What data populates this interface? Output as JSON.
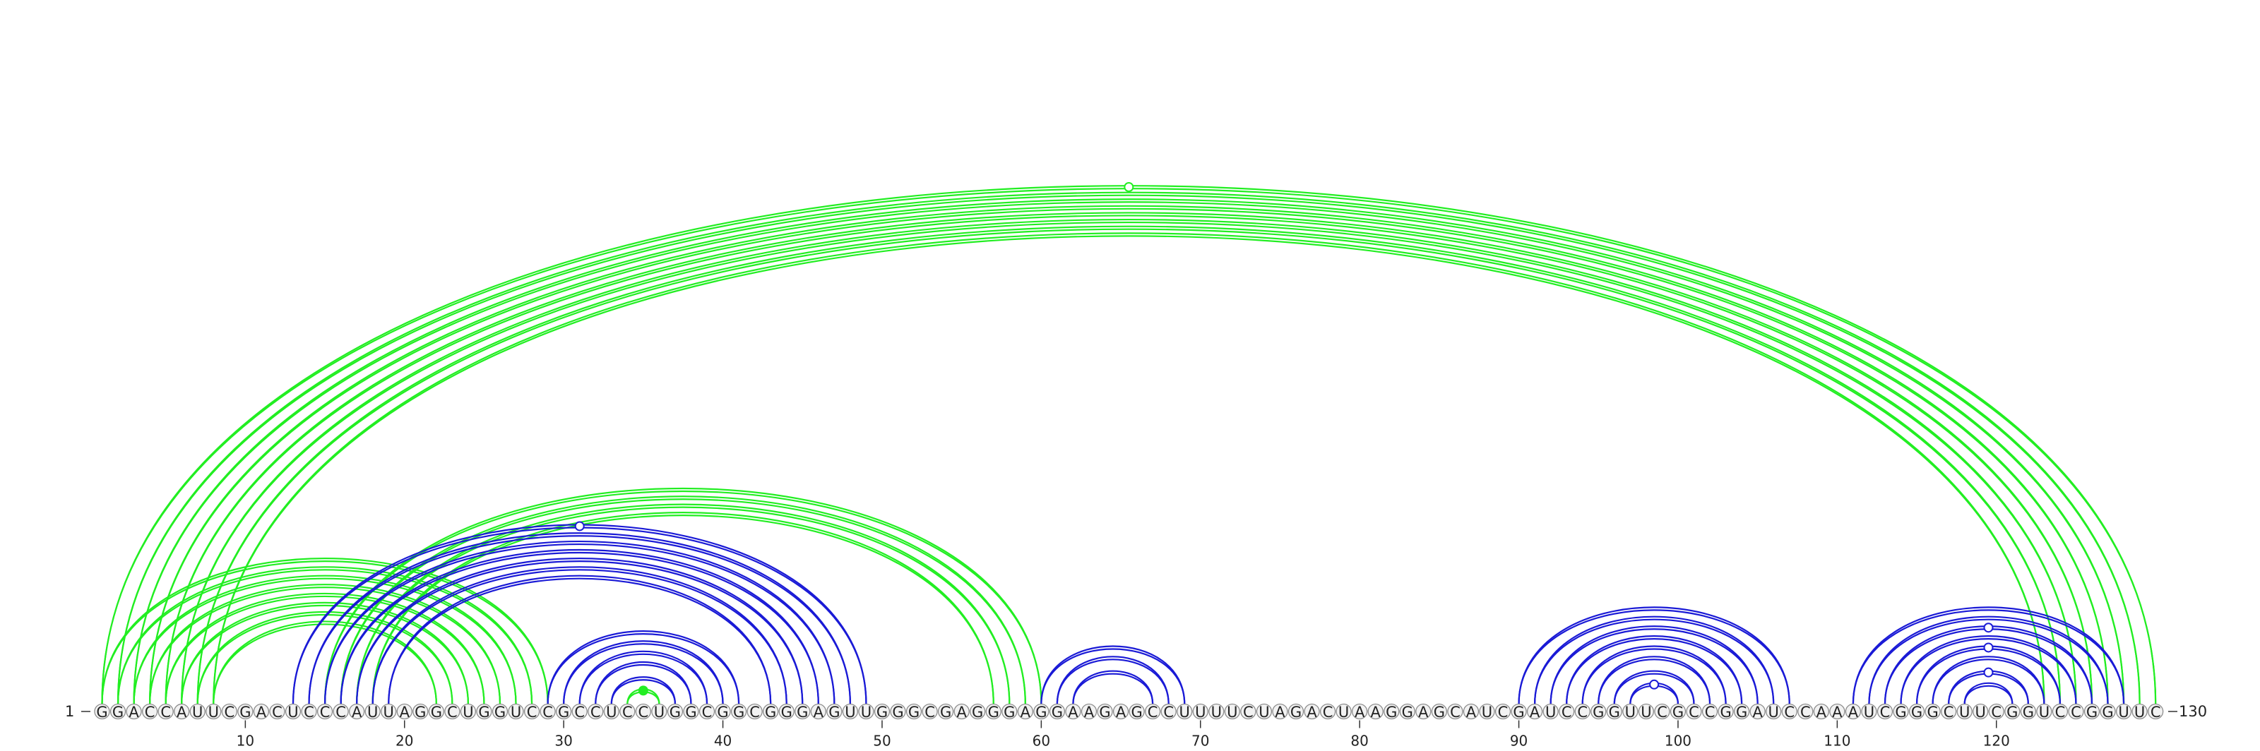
{
  "sequence": "GGACCAUUCGACUCCCAUUAGGCUGGUCCGCCUCCUGGCGGCGGGAGUUGGGCGAGGGAGGAAGAGCCUUUUCUAGACUAAGGAGCAUCGAUCCGGUUCGCCGGAUCCAAAUCGGGCUUCGGUCCGGUUC",
  "start_label": "1",
  "end_label": "130",
  "ticks": [
    10,
    20,
    30,
    40,
    50,
    60,
    70,
    80,
    90,
    100,
    110,
    120
  ],
  "colors": {
    "green": "#22ee22",
    "blue": "#1a1ad6",
    "green_marker": "#22dd22"
  },
  "arc_groups": [
    {
      "color": "green",
      "pairs": [
        [
          1,
          130
        ],
        [
          2,
          129
        ],
        [
          3,
          128
        ],
        [
          4,
          127
        ],
        [
          5,
          126
        ],
        [
          6,
          125
        ],
        [
          7,
          124
        ],
        [
          8,
          123
        ]
      ]
    },
    {
      "color": "green",
      "pairs": [
        [
          1,
          29
        ],
        [
          2,
          28
        ],
        [
          3,
          27
        ],
        [
          4,
          26
        ],
        [
          5,
          25
        ],
        [
          6,
          24
        ],
        [
          7,
          23
        ],
        [
          8,
          22
        ]
      ]
    },
    {
      "color": "green",
      "pairs": [
        [
          15,
          60
        ],
        [
          16,
          59
        ],
        [
          17,
          58
        ],
        [
          18,
          57
        ]
      ]
    },
    {
      "color": "blue",
      "pairs": [
        [
          13,
          49
        ],
        [
          14,
          48
        ],
        [
          15,
          47
        ],
        [
          16,
          46
        ],
        [
          17,
          45
        ],
        [
          18,
          44
        ],
        [
          19,
          43
        ]
      ]
    },
    {
      "color": "blue",
      "pairs": [
        [
          29,
          41
        ],
        [
          30,
          40
        ],
        [
          31,
          39
        ],
        [
          32,
          38
        ],
        [
          33,
          37
        ]
      ]
    },
    {
      "color": "blue",
      "pairs": [
        [
          60,
          69
        ],
        [
          61,
          68
        ],
        [
          62,
          67
        ]
      ]
    },
    {
      "color": "blue",
      "pairs": [
        [
          90,
          107
        ],
        [
          91,
          106
        ],
        [
          92,
          105
        ],
        [
          93,
          104
        ],
        [
          94,
          103
        ],
        [
          95,
          102
        ],
        [
          96,
          101
        ],
        [
          97,
          100
        ]
      ]
    },
    {
      "color": "blue",
      "pairs": [
        [
          111,
          128
        ],
        [
          112,
          127
        ],
        [
          113,
          126
        ],
        [
          114,
          125
        ],
        [
          115,
          124
        ],
        [
          116,
          123
        ],
        [
          117,
          122
        ],
        [
          118,
          121
        ]
      ]
    },
    {
      "color": "green",
      "pairs": [
        [
          34,
          36
        ]
      ]
    }
  ],
  "markers": [
    {
      "color": "green",
      "i": 1,
      "j": 130,
      "filled": false
    },
    {
      "color": "green",
      "i": 34,
      "j": 36,
      "filled": true
    },
    {
      "color": "blue",
      "i": 13,
      "j": 49,
      "filled": false
    },
    {
      "color": "blue",
      "i": 97,
      "j": 100,
      "filled": false
    },
    {
      "color": "blue",
      "i": 117,
      "j": 122,
      "filled": false
    },
    {
      "color": "blue",
      "i": 115,
      "j": 124,
      "filled": false
    },
    {
      "color": "blue",
      "i": 113,
      "j": 126,
      "filled": false
    }
  ]
}
